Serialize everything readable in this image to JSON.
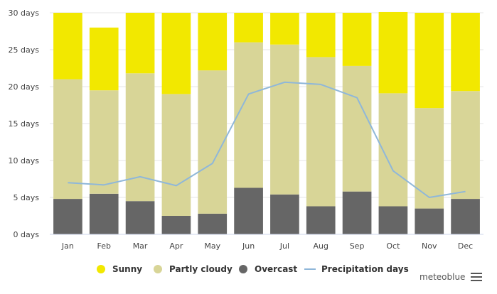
{
  "colors": {
    "sunny": "#f2e800",
    "partly": "#d8d597",
    "overcast": "#666666",
    "precip": "#8fb7d9",
    "grid": "#e6e6e6"
  },
  "credit": "meteoblue",
  "chart_data": {
    "type": "bar",
    "stacked": true,
    "categories": [
      "Jan",
      "Feb",
      "Mar",
      "Apr",
      "May",
      "Jun",
      "Jul",
      "Aug",
      "Sep",
      "Oct",
      "Nov",
      "Dec"
    ],
    "y_ticks": [
      "0 days",
      "5 days",
      "10 days",
      "15 days",
      "20 days",
      "25 days",
      "30 days"
    ],
    "ylim": [
      0,
      30
    ],
    "grid": true,
    "legend_position": "bottom",
    "series": [
      {
        "name": "Overcast",
        "type": "bar",
        "values": [
          4.8,
          5.5,
          4.5,
          2.5,
          2.8,
          6.3,
          5.4,
          3.8,
          5.8,
          3.8,
          3.5,
          4.8
        ]
      },
      {
        "name": "Partly cloudy",
        "type": "bar",
        "values": [
          16.2,
          14.0,
          17.3,
          16.5,
          19.4,
          19.7,
          20.3,
          20.2,
          17.0,
          15.3,
          13.6,
          14.6
        ]
      },
      {
        "name": "Sunny",
        "type": "bar",
        "values": [
          9.0,
          8.5,
          8.2,
          11.0,
          7.8,
          4.0,
          4.3,
          6.0,
          7.2,
          11.0,
          12.9,
          10.6
        ]
      },
      {
        "name": "Precipitation days",
        "type": "line",
        "values": [
          7.0,
          6.7,
          7.8,
          6.6,
          9.6,
          19.0,
          20.6,
          20.3,
          18.5,
          8.6,
          5.0,
          5.8
        ]
      }
    ]
  }
}
